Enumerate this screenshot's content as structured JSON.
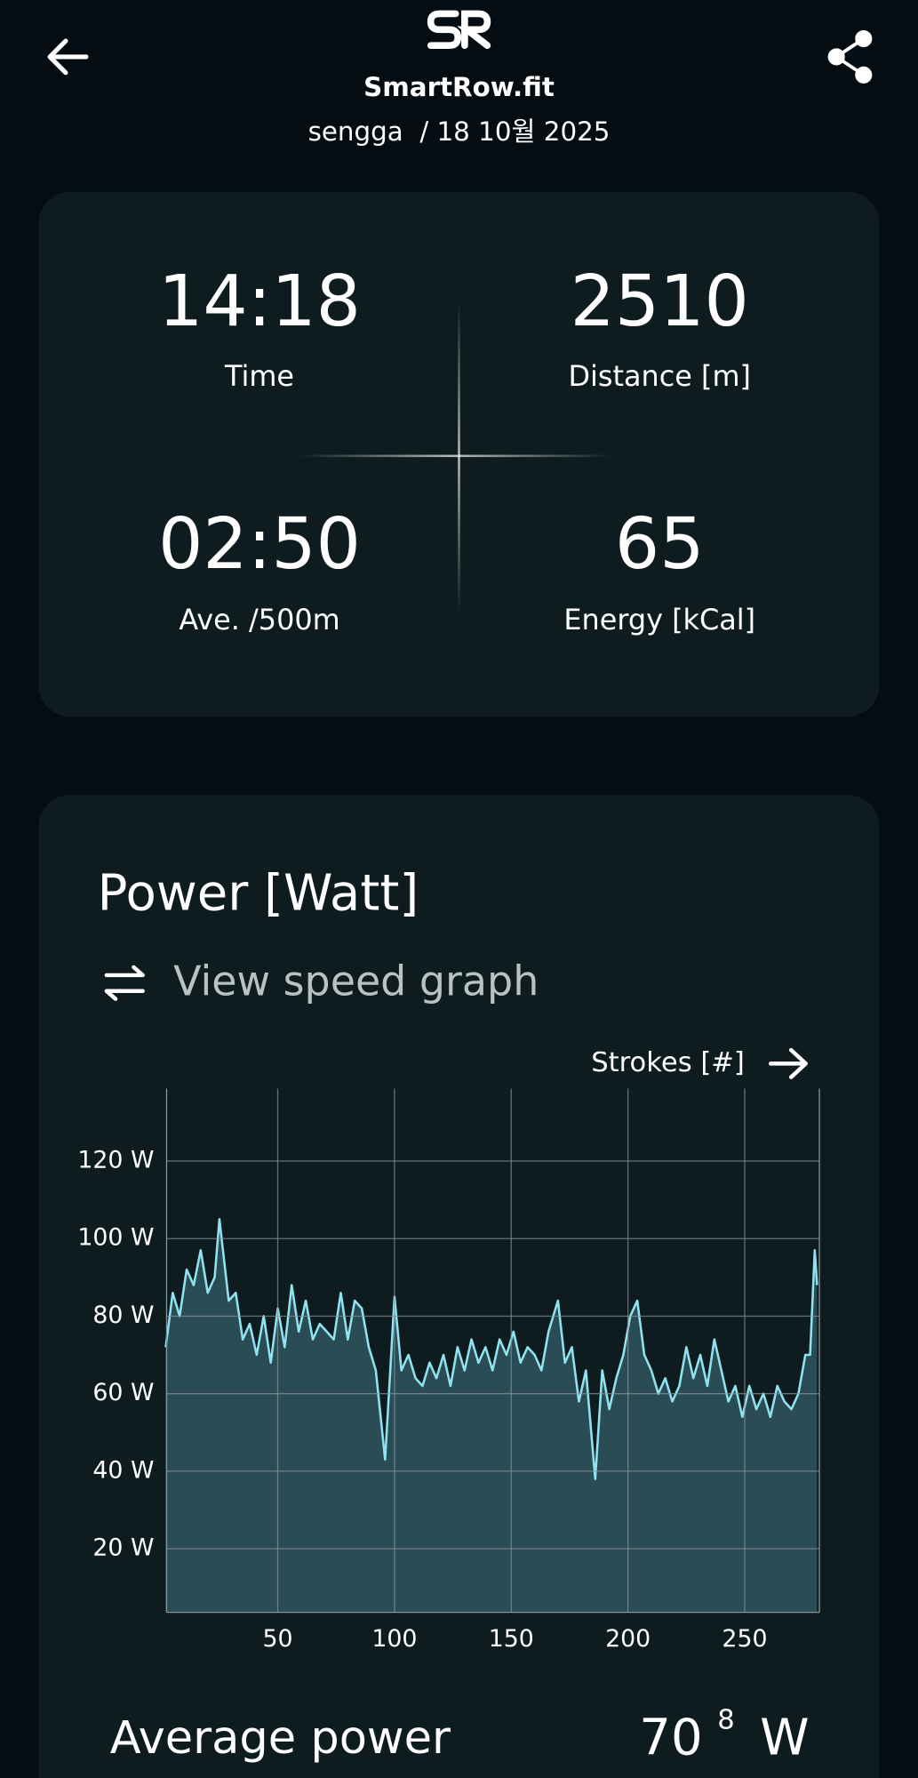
{
  "header": {
    "app": "SmartRow.fit",
    "subtitle": "sengga  / 18 10월 2025"
  },
  "stats": [
    {
      "value": "14:18",
      "label": "Time"
    },
    {
      "value": "2510",
      "label": "Distance [m]"
    },
    {
      "value": "02:50",
      "label": "Ave. /500m"
    },
    {
      "value": "65",
      "label": "Energy [kCal]"
    }
  ],
  "toggle": "View speed graph",
  "chart_data": {
    "type": "area",
    "title": "Power [Watt]",
    "x_label": "Strokes [#]",
    "color": "#8fe3f0",
    "fill": "#2a4d55",
    "grid": true,
    "xlim": [
      2.4,
      282
    ],
    "ylim": [
      3.6,
      138.7
    ],
    "xticks": [
      50,
      100,
      150,
      200,
      250
    ],
    "yticks": [
      {
        "value": 20,
        "label": "20 W"
      },
      {
        "value": 40,
        "label": "40 W"
      },
      {
        "value": 60,
        "label": "60 W"
      },
      {
        "value": 80,
        "label": "80 W"
      },
      {
        "value": 100,
        "label": "100 W"
      },
      {
        "value": 120,
        "label": "120 W"
      }
    ],
    "x": [
      2,
      5,
      8,
      11,
      14,
      17,
      20,
      23,
      25,
      29,
      32,
      35,
      38,
      41,
      44,
      47,
      50,
      53,
      56,
      59,
      62,
      65,
      68,
      71,
      74,
      77,
      80,
      83,
      86,
      89,
      92,
      96,
      100,
      103,
      106,
      109,
      112,
      115,
      118,
      121,
      124,
      127,
      130,
      133,
      136,
      139,
      142,
      145,
      148,
      151,
      154,
      157,
      160,
      163,
      166,
      170,
      173,
      176,
      179,
      182,
      186,
      189,
      192,
      195,
      198,
      201,
      204,
      207,
      210,
      213,
      216,
      219,
      222,
      225,
      228,
      231,
      234,
      237,
      240,
      243,
      246,
      249,
      252,
      255,
      258,
      261,
      264,
      267,
      270,
      273,
      276,
      278,
      280,
      281
    ],
    "values": [
      72,
      86,
      80,
      92,
      88,
      97,
      86,
      90,
      105,
      84,
      86,
      74,
      78,
      70,
      80,
      68,
      82,
      72,
      88,
      76,
      84,
      74,
      78,
      76,
      74,
      86,
      74,
      84,
      82,
      72,
      66,
      43,
      85,
      66,
      70,
      64,
      62,
      68,
      64,
      70,
      62,
      72,
      66,
      74,
      68,
      72,
      66,
      74,
      70,
      76,
      68,
      72,
      70,
      66,
      76,
      84,
      68,
      72,
      58,
      66,
      38,
      66,
      56,
      64,
      70,
      80,
      84,
      70,
      66,
      60,
      64,
      58,
      62,
      72,
      64,
      70,
      62,
      74,
      66,
      58,
      62,
      54,
      62,
      56,
      60,
      54,
      62,
      58,
      56,
      60,
      70,
      70,
      97,
      88
    ]
  },
  "summary": {
    "label": "Average power",
    "value": "70",
    "decimal": "8",
    "unit": "W"
  }
}
